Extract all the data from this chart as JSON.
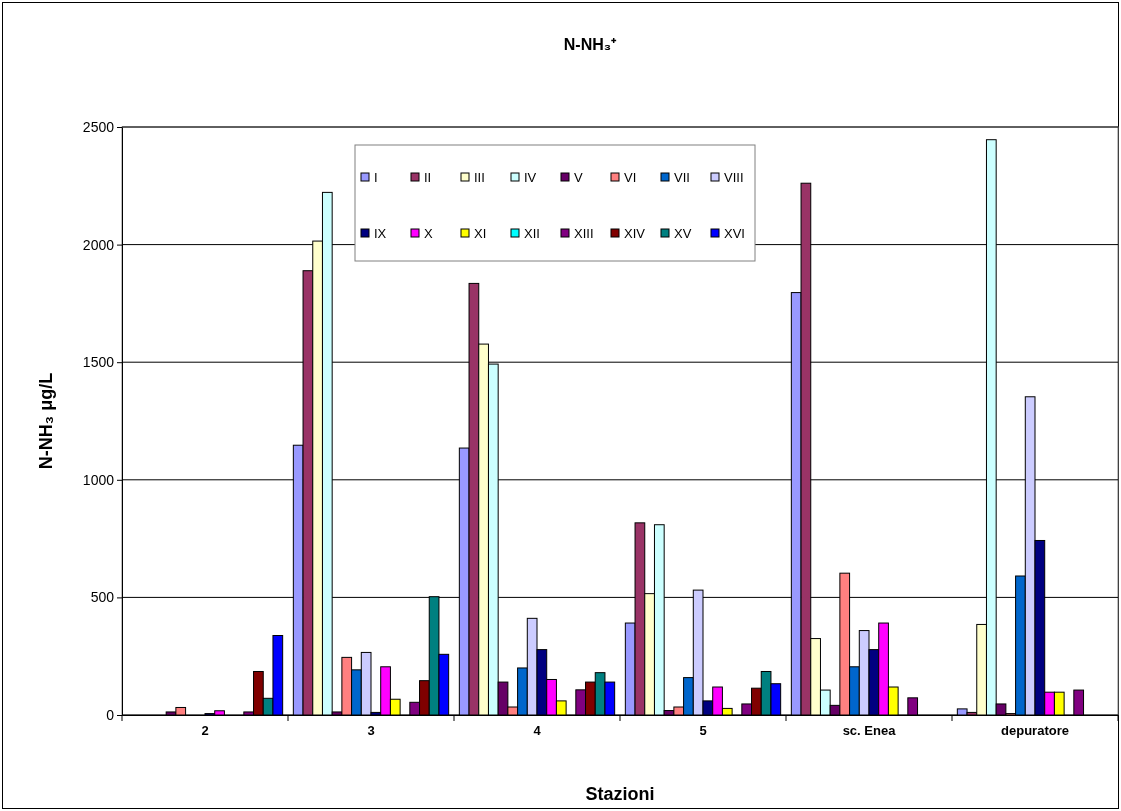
{
  "chart_data": {
    "type": "bar",
    "title": "N-NH₃⁺",
    "xlabel": "Stazioni",
    "ylabel": "N-NH₃ μg/L",
    "categories": [
      "2",
      "3",
      "4",
      "5",
      "sc. Enea",
      "depuratore"
    ],
    "ylim": [
      0,
      2500
    ],
    "yticks": [
      0,
      500,
      1000,
      1500,
      2000,
      2500
    ],
    "grid": "y",
    "legend": "top",
    "series": [
      {
        "name": "I",
        "color": "#9999ff",
        "values": [
          null,
          1147,
          1135,
          391,
          1796,
          26
        ]
      },
      {
        "name": "II",
        "color": "#993366",
        "values": [
          null,
          1889,
          1835,
          817,
          2261,
          11
        ]
      },
      {
        "name": "III",
        "color": "#ffffcc",
        "values": [
          null,
          2015,
          1577,
          516,
          325,
          385
        ]
      },
      {
        "name": "IV",
        "color": "#ccffff",
        "values": [
          null,
          2222,
          1492,
          809,
          106,
          2446
        ]
      },
      {
        "name": "V",
        "color": "#660066",
        "values": [
          13,
          13,
          140,
          19,
          41,
          47
        ]
      },
      {
        "name": "VI",
        "color": "#ff8080",
        "values": [
          32,
          245,
          34,
          34,
          603,
          6
        ]
      },
      {
        "name": "VII",
        "color": "#0066cc",
        "values": [
          null,
          192,
          200,
          159,
          205,
          591
        ]
      },
      {
        "name": "VIII",
        "color": "#ccccff",
        "values": [
          null,
          266,
          411,
          531,
          359,
          1353
        ]
      },
      {
        "name": "IX",
        "color": "#000080",
        "values": [
          6,
          11,
          278,
          60,
          278,
          742
        ]
      },
      {
        "name": "X",
        "color": "#ff00ff",
        "values": [
          18,
          205,
          151,
          119,
          391,
          97
        ]
      },
      {
        "name": "XI",
        "color": "#ffff00",
        "values": [
          null,
          67,
          60,
          28,
          119,
          97
        ]
      },
      {
        "name": "XII",
        "color": "#00ffff",
        "values": [
          null,
          null,
          null,
          null,
          null,
          null
        ]
      },
      {
        "name": "XIII",
        "color": "#800080",
        "values": [
          13,
          54,
          107,
          47,
          73,
          106
        ]
      },
      {
        "name": "XIV",
        "color": "#800000",
        "values": [
          185,
          146,
          140,
          114,
          null,
          null
        ]
      },
      {
        "name": "XV",
        "color": "#008080",
        "values": [
          71,
          503,
          180,
          185,
          null,
          null
        ]
      },
      {
        "name": "XVI",
        "color": "#0000ff",
        "values": [
          338,
          258,
          140,
          133,
          null,
          null
        ]
      }
    ]
  }
}
